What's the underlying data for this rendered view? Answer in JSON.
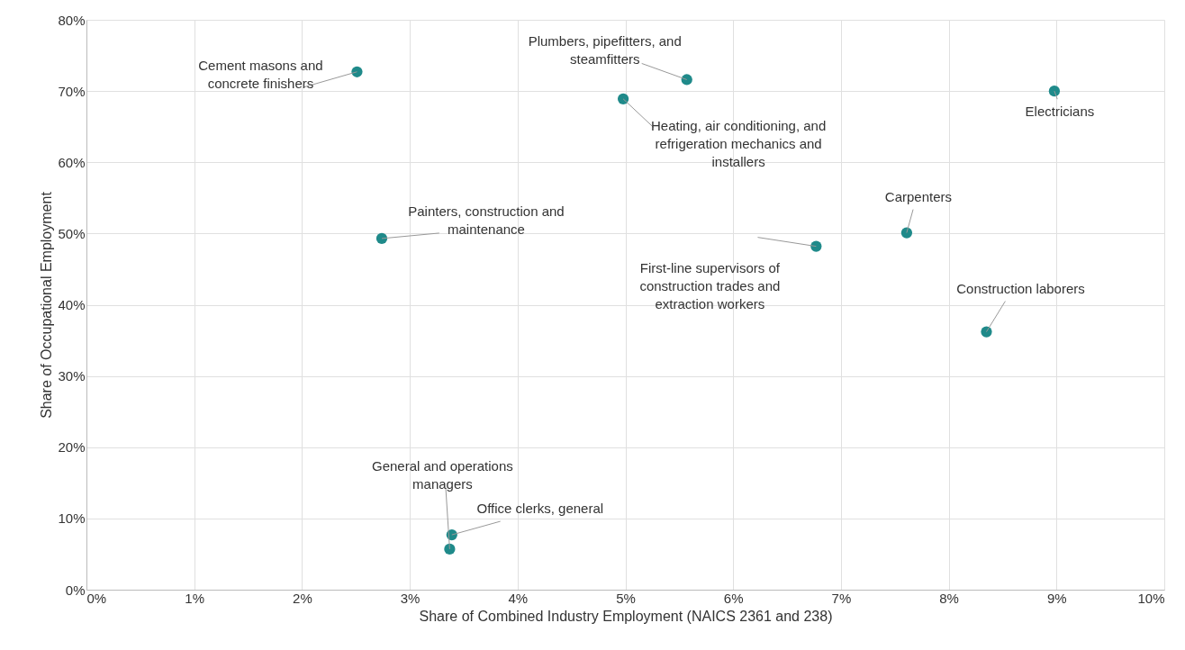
{
  "chart_data": {
    "type": "scatter",
    "xlabel": "Share of Combined Industry Employment (NAICS 2361 and 238)",
    "ylabel": "Share of Occupational Employment",
    "x": [
      2.51,
      5.57,
      4.98,
      8.98,
      2.74,
      7.61,
      6.77,
      8.35,
      3.37,
      3.39
    ],
    "values": [
      72.7,
      71.6,
      68.9,
      70.0,
      49.3,
      50.1,
      48.2,
      36.2,
      5.7,
      7.7
    ],
    "color": "#1f8a8a",
    "marker": "circle",
    "grid": true,
    "xlim": [
      0,
      10
    ],
    "ylim": [
      0,
      80
    ],
    "xticks": [
      {
        "value": 0,
        "label": "0%"
      },
      {
        "value": 1,
        "label": "1%"
      },
      {
        "value": 2,
        "label": "2%"
      },
      {
        "value": 3,
        "label": "3%"
      },
      {
        "value": 4,
        "label": "4%"
      },
      {
        "value": 5,
        "label": "5%"
      },
      {
        "value": 6,
        "label": "6%"
      },
      {
        "value": 7,
        "label": "7%"
      },
      {
        "value": 8,
        "label": "8%"
      },
      {
        "value": 9,
        "label": "9%"
      },
      {
        "value": 10,
        "label": "10%"
      }
    ],
    "yticks": [
      {
        "value": 0,
        "label": "0%"
      },
      {
        "value": 10,
        "label": "10%"
      },
      {
        "value": 20,
        "label": "20%"
      },
      {
        "value": 30,
        "label": "30%"
      },
      {
        "value": 40,
        "label": "40%"
      },
      {
        "value": 50,
        "label": "50%"
      },
      {
        "value": 60,
        "label": "60%"
      },
      {
        "value": 70,
        "label": "70%"
      },
      {
        "value": 80,
        "label": "80%"
      }
    ],
    "annotations": [
      {
        "text": "Cement masons and\nconcrete finishers",
        "x": 2.51,
        "y": 72.7
      },
      {
        "text": "Plumbers, pipefitters, and\nsteamfitters",
        "x": 5.57,
        "y": 71.6
      },
      {
        "text": "Heating, air conditioning, and\nrefrigeration mechanics and\ninstallers",
        "x": 4.98,
        "y": 68.9
      },
      {
        "text": "Electricians",
        "x": 8.98,
        "y": 70.0
      },
      {
        "text": "Painters, construction and\nmaintenance",
        "x": 2.74,
        "y": 49.3
      },
      {
        "text": "Carpenters",
        "x": 7.61,
        "y": 50.1
      },
      {
        "text": "First-line supervisors of\nconstruction trades and\nextraction workers",
        "x": 6.77,
        "y": 48.2
      },
      {
        "text": "Construction laborers",
        "x": 8.35,
        "y": 36.2
      },
      {
        "text": "General and operations\nmanagers",
        "x": 3.37,
        "y": 5.7
      },
      {
        "text": "Office clerks, general",
        "x": 3.39,
        "y": 7.7
      }
    ]
  }
}
